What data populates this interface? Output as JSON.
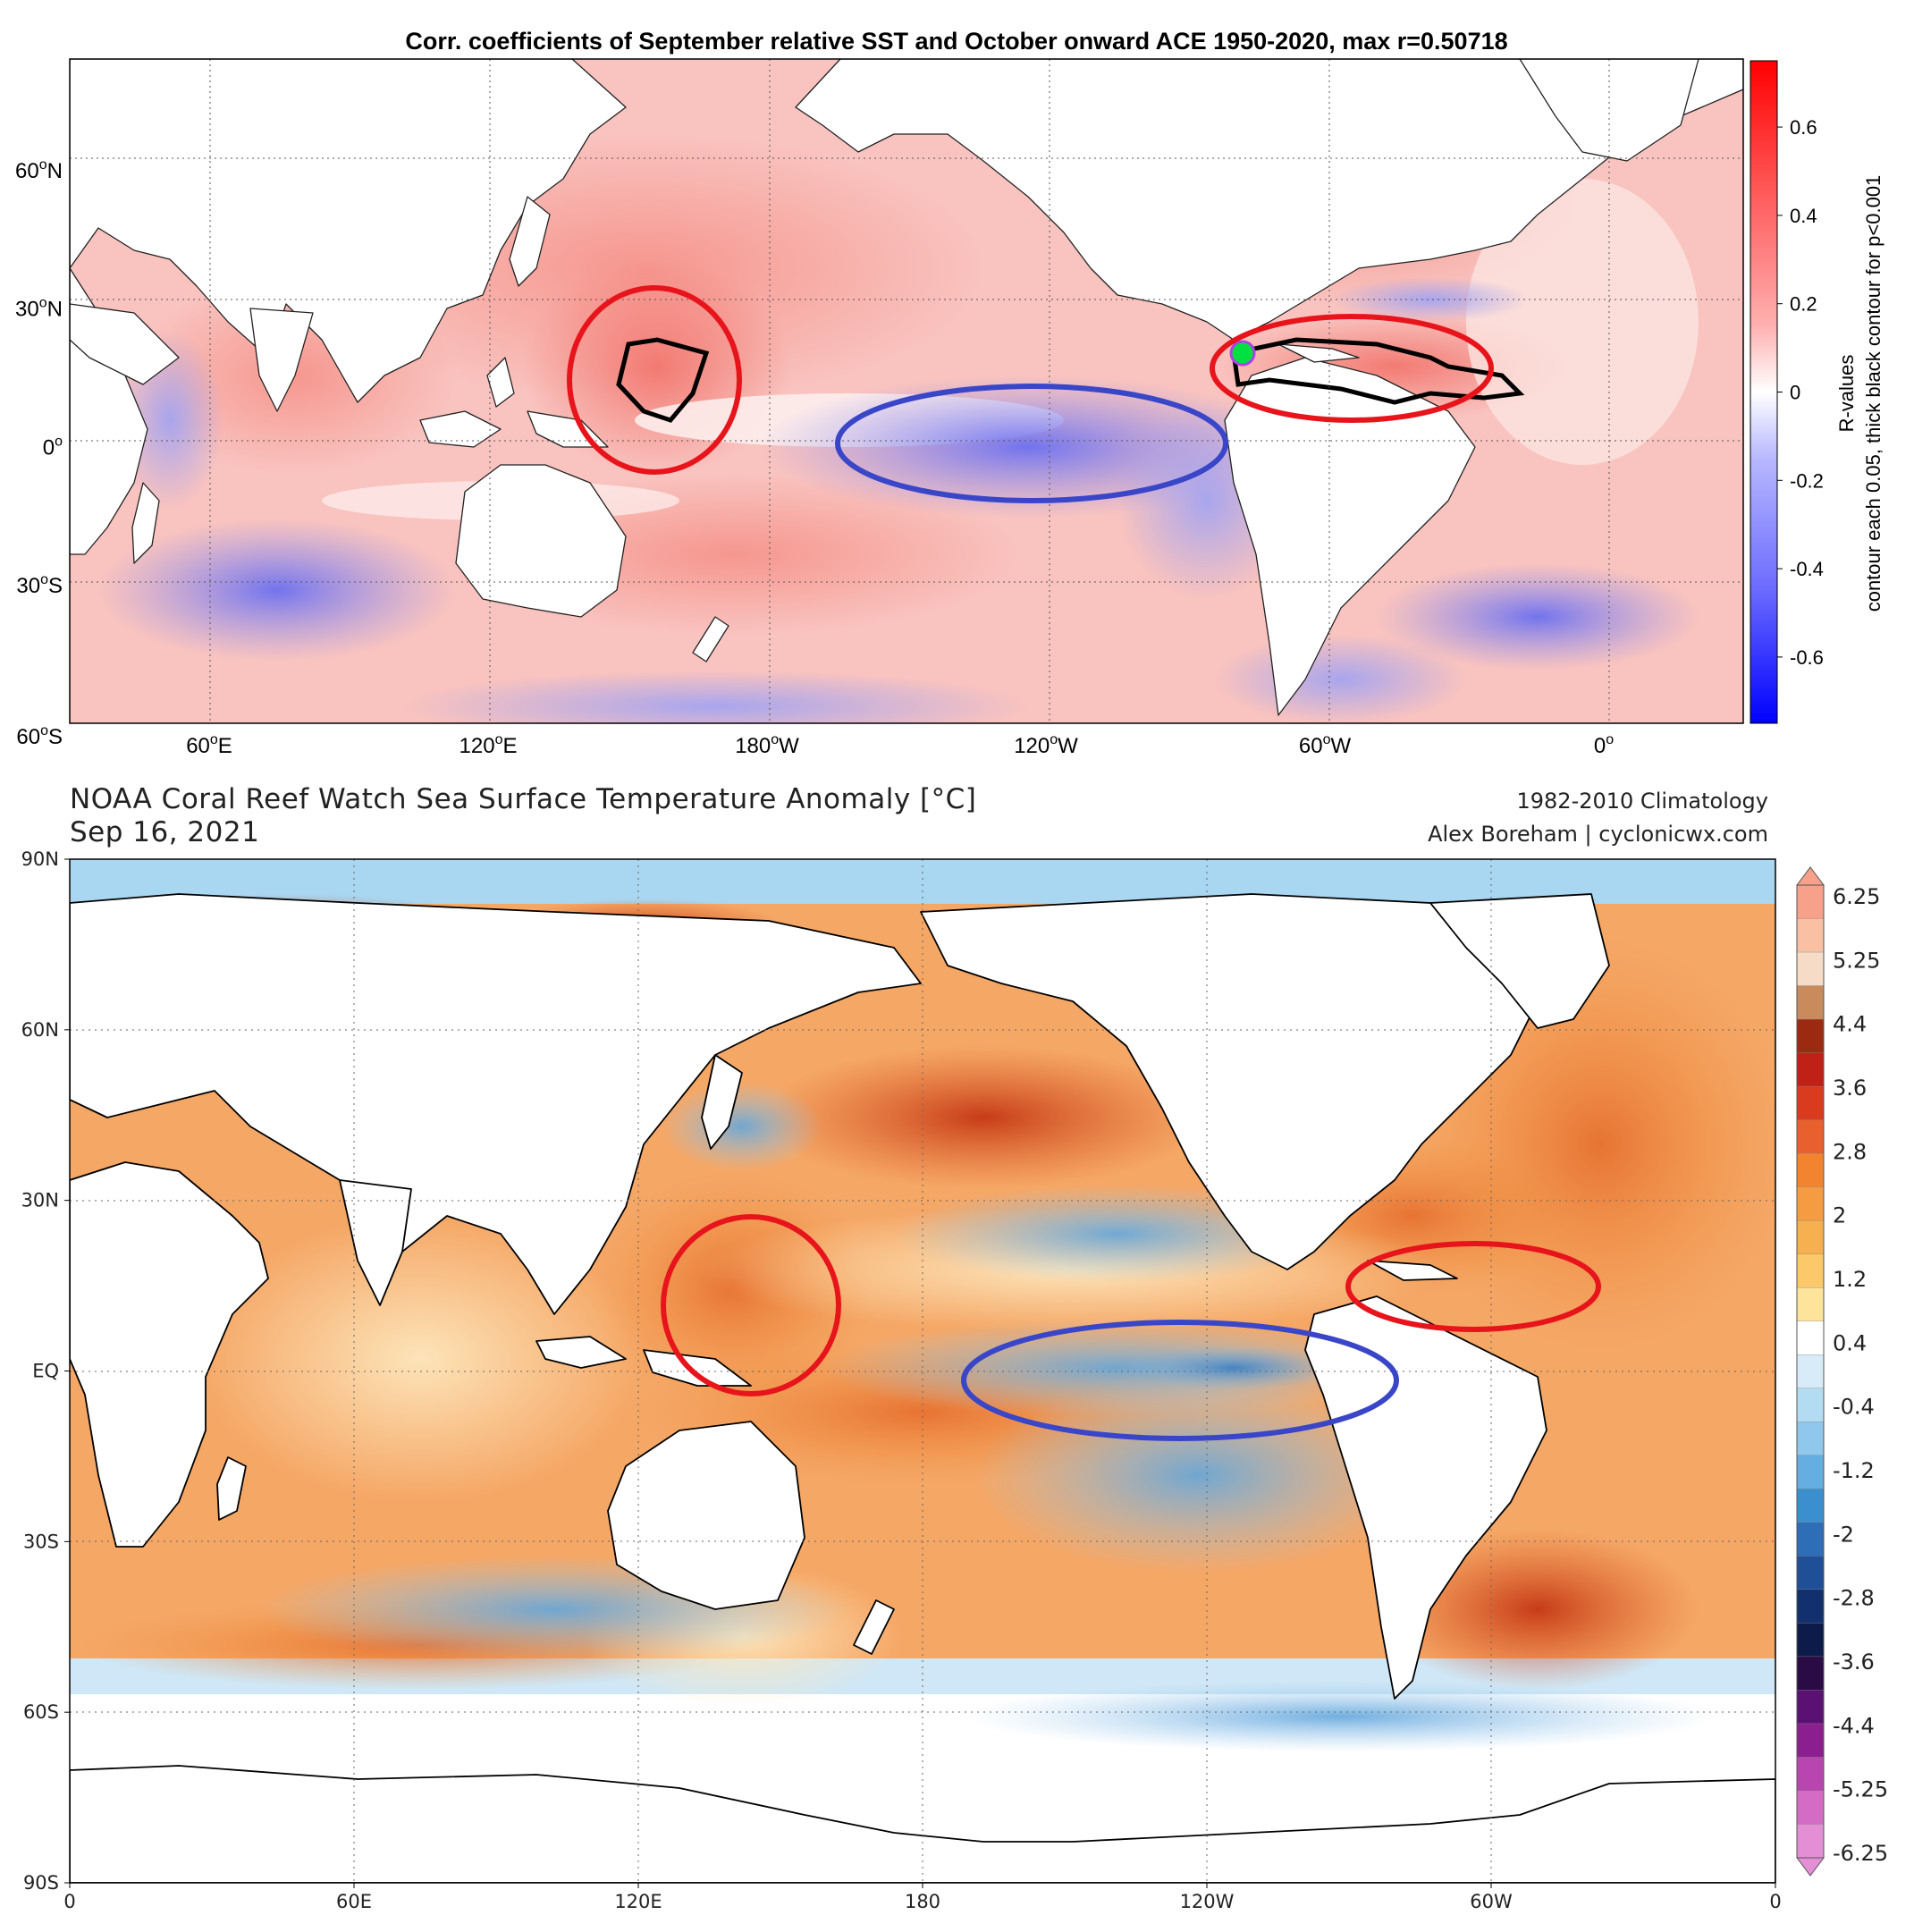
{
  "top_map": {
    "title": "Corr. coefficients of September relative SST and October onward ACE 1950-2020, max r=0.50718",
    "lat_labels": [
      {
        "deg": "60",
        "hemi": "N",
        "lat": 60
      },
      {
        "deg": "30",
        "hemi": "N",
        "lat": 30
      },
      {
        "deg": "0",
        "hemi": "",
        "lat": 0
      },
      {
        "deg": "30",
        "hemi": "S",
        "lat": -30
      },
      {
        "deg": "60",
        "hemi": "S",
        "lat": -60
      }
    ],
    "lon_labels": [
      {
        "deg": "60",
        "hemi": "E",
        "lon": 60
      },
      {
        "deg": "120",
        "hemi": "E",
        "lon": 120
      },
      {
        "deg": "180",
        "hemi": "W",
        "lon": 180
      },
      {
        "deg": "120",
        "hemi": "W",
        "lon": 240
      },
      {
        "deg": "60",
        "hemi": "W",
        "lon": 300
      },
      {
        "deg": "0",
        "hemi": "",
        "lon": 360
      }
    ],
    "colorbar": {
      "ticks": [
        "0.6",
        "0.4",
        "0.2",
        "0",
        "-0.2",
        "-0.4",
        "-0.6"
      ],
      "tick_values": [
        0.6,
        0.4,
        0.2,
        0,
        -0.2,
        -0.4,
        -0.6
      ],
      "range": [
        -0.75,
        0.75
      ],
      "label_line1": "R-values",
      "label_line2": "contour each 0.05, thick black contour for p<0.001"
    },
    "annotations": [
      {
        "name": "west-pacific-circle",
        "color": "#e8141b",
        "lon": 145,
        "lat": 14
      },
      {
        "name": "central-pacific-ellipse",
        "color": "#3a46c8",
        "lon": 233,
        "lat": 0
      },
      {
        "name": "caribbean-atlantic-ellipse",
        "color": "#e8141b",
        "lon": 300,
        "lat": 15
      }
    ]
  },
  "bottom_map": {
    "title": "NOAA Coral Reef Watch Sea Surface Temperature Anomaly [°C]",
    "date": "Sep 16, 2021",
    "climatology": "1982-2010 Climatology",
    "credit": "Alex Boreham | cyclonicwx.com",
    "lat_labels": [
      {
        "text": "90N",
        "lat": 90
      },
      {
        "text": "60N",
        "lat": 60
      },
      {
        "text": "30N",
        "lat": 30
      },
      {
        "text": "EQ",
        "lat": 0
      },
      {
        "text": "30S",
        "lat": -30
      },
      {
        "text": "60S",
        "lat": -60
      },
      {
        "text": "90S",
        "lat": -90
      }
    ],
    "lon_labels": [
      {
        "text": "0",
        "lon": 0
      },
      {
        "text": "60E",
        "lon": 60
      },
      {
        "text": "120E",
        "lon": 120
      },
      {
        "text": "180",
        "lon": 180
      },
      {
        "text": "120W",
        "lon": 240
      },
      {
        "text": "60W",
        "lon": 300
      },
      {
        "text": "0",
        "lon": 360
      }
    ],
    "colorbar": {
      "ticks": [
        "6.25",
        "5.25",
        "4.4",
        "3.6",
        "2.8",
        "2",
        "1.2",
        "0.4",
        "-0.4",
        "-1.2",
        "-2",
        "-2.8",
        "-3.6",
        "-4.4",
        "-5.25",
        "-6.25"
      ],
      "colors": [
        "#f7a08a",
        "#f9c0a4",
        "#f6dcc6",
        "#c98a5c",
        "#9c2a10",
        "#bf2116",
        "#d83b1e",
        "#e8602e",
        "#f2842f",
        "#f59b41",
        "#f7b04f",
        "#fbc86a",
        "#fde49a",
        "#ffffff",
        "#d7ecf8",
        "#b3dcf3",
        "#8fc8ec",
        "#64aee1",
        "#3c8fce",
        "#2d6eb6",
        "#1f4f97",
        "#12306e",
        "#0d1b4b",
        "#2a0b46",
        "#5a1173",
        "#8c1f8f",
        "#b845b0",
        "#d46cc6",
        "#e48ed6"
      ]
    },
    "annotations": [
      {
        "name": "west-pacific-circle",
        "color": "#e8141b",
        "lon": 140,
        "lat": 14
      },
      {
        "name": "central-pacific-ellipse",
        "color": "#3a46c8",
        "lon": 230,
        "lat": 0
      },
      {
        "name": "caribbean-atlantic-ellipse",
        "color": "#e8141b",
        "lon": 298,
        "lat": 14
      }
    ]
  }
}
